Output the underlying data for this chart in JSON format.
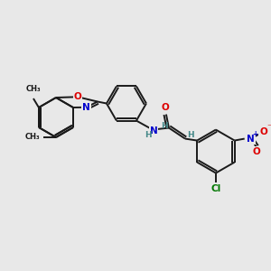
{
  "background_color": "#e8e8e8",
  "bond_color": "#1a1a1a",
  "figsize": [
    3.0,
    3.0
  ],
  "dpi": 100,
  "xlim": [
    0,
    300
  ],
  "ylim": [
    0,
    300
  ],
  "colors": {
    "O": "#dd0000",
    "N": "#0000cc",
    "Cl": "#007700",
    "H": "#448888",
    "C": "#1a1a1a"
  }
}
